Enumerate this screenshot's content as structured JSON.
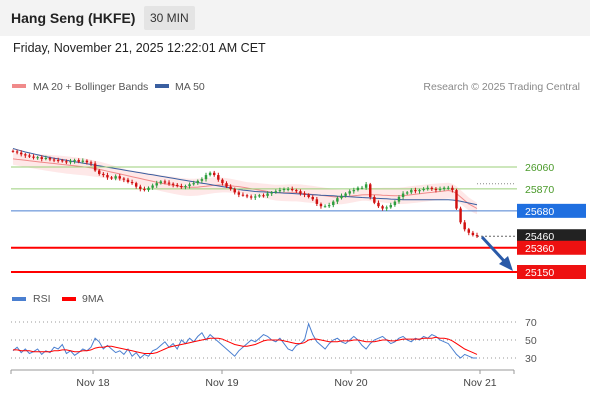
{
  "header": {
    "title": "Hang Seng (HKFE)",
    "timeframe": "30 MIN",
    "datetime": "Friday, November 21, 2025 12:22:01 AM CET"
  },
  "copyright": "Research © 2025 Trading Central",
  "colors": {
    "up": "#2e9e3e",
    "down": "#d01010",
    "ma20": "#f08a8a",
    "ma50": "#3a5fa0",
    "band": "#fde0e0",
    "support": "#ff0000",
    "resistance": "#9bcf7a",
    "pivot": "#4a7fd0",
    "last": "#333333",
    "rsi": "#4a7fd0",
    "rsi_ma": "#ff0000"
  },
  "chart_data": [
    {
      "type": "candlestick",
      "legend": [
        {
          "label": "MA 20 + Bollinger Bands",
          "color": "#f08a8a"
        },
        {
          "label": "MA 50",
          "color": "#3a5fa0"
        }
      ],
      "legend_position": "top-left",
      "x_tick_labels": [
        "Nov 18",
        "Nov 19",
        "Nov 20",
        "Nov 21"
      ],
      "y_range": [
        25100,
        26300
      ],
      "price_levels": [
        {
          "label": "26060",
          "value": 26060,
          "kind": "resistance"
        },
        {
          "label": "25870",
          "value": 25870,
          "kind": "resistance"
        },
        {
          "label": "25680",
          "value": 25680,
          "kind": "pivot"
        },
        {
          "label": "25460",
          "value": 25460,
          "kind": "last"
        },
        {
          "label": "25360",
          "value": 25360,
          "kind": "support"
        },
        {
          "label": "25150",
          "value": 25150,
          "kind": "support"
        }
      ],
      "close_path": [
        26195,
        26185,
        26170,
        26160,
        26150,
        26140,
        26145,
        26130,
        26138,
        26125,
        26120,
        26118,
        26110,
        26100,
        26110,
        26120,
        26105,
        26115,
        26100,
        26090,
        26030,
        26000,
        25990,
        25970,
        25960,
        25980,
        25960,
        25950,
        25930,
        25920,
        25890,
        25870,
        25860,
        25880,
        25900,
        25920,
        25935,
        25925,
        25915,
        25905,
        25895,
        25885,
        25895,
        25910,
        25920,
        25940,
        25955,
        25990,
        26010,
        25990,
        25950,
        25920,
        25890,
        25870,
        25840,
        25820,
        25815,
        25805,
        25795,
        25805,
        25815,
        25810,
        25830,
        25840,
        25850,
        25860,
        25870,
        25870,
        25860,
        25850,
        25830,
        25820,
        25800,
        25780,
        25740,
        25720,
        25720,
        25730,
        25760,
        25790,
        25810,
        25830,
        25850,
        25860,
        25880,
        25880,
        25910,
        25800,
        25750,
        25720,
        25700,
        25710,
        25730,
        25760,
        25800,
        25830,
        25840,
        25860,
        25850,
        25860,
        25870,
        25880,
        25870,
        25860,
        25870,
        25880,
        25880,
        25860,
        25700,
        25580,
        25520,
        25490,
        25470,
        25460
      ],
      "ma20_path": [
        26130,
        26126,
        26122,
        26118,
        26114,
        26110,
        26106,
        26102,
        26098,
        26094,
        26090,
        26086,
        26082,
        26078,
        26074,
        26070,
        26066,
        26062,
        26058,
        26052,
        26046,
        26040,
        26032,
        26024,
        26016,
        26008,
        26000,
        25992,
        25984,
        25976,
        25968,
        25960,
        25952,
        25944,
        25936,
        25928,
        25920,
        25914,
        25908,
        25902,
        25896,
        25890,
        25886,
        25884,
        25884,
        25886,
        25890,
        25894,
        25898,
        25902,
        25904,
        25904,
        25902,
        25898,
        25894,
        25890,
        25884,
        25878,
        25872,
        25866,
        25860,
        25854,
        25848,
        25842,
        25838,
        25836,
        25836,
        25836,
        25836,
        25836,
        25834,
        25830,
        25826,
        25822,
        25818,
        25814,
        25810,
        25806,
        25802,
        25800,
        25800,
        25802,
        25806,
        25810,
        25814,
        25818,
        25820,
        25820,
        25820,
        25818,
        25816,
        25814,
        25812,
        25810,
        25810,
        25812,
        25816,
        25820,
        25824,
        25828,
        25832,
        25836,
        25840,
        25844,
        25848,
        25852,
        25856,
        25850,
        25830,
        25800,
        25770,
        25740,
        25720,
        25700
      ],
      "ma50_path": [
        26220,
        26210,
        26200,
        26190,
        26182,
        26174,
        26166,
        26158,
        26150,
        26142,
        26136,
        26130,
        26124,
        26118,
        26112,
        26106,
        26100,
        26094,
        26088,
        26082,
        26076,
        26070,
        26064,
        26058,
        26052,
        26046,
        26040,
        26034,
        26028,
        26022,
        26016,
        26010,
        26004,
        25998,
        25992,
        25986,
        25980,
        25974,
        25968,
        25962,
        25956,
        25950,
        25944,
        25938,
        25932,
        25926,
        25920,
        25914,
        25908,
        25902,
        25896,
        25890,
        25884,
        25878,
        25872,
        25866,
        25860,
        25856,
        25852,
        25848,
        25846,
        25844,
        25842,
        25840,
        25838,
        25836,
        25834,
        25832,
        25830,
        25828,
        25826,
        25824,
        25822,
        25820,
        25818,
        25816,
        25814,
        25812,
        25810,
        25808,
        25806,
        25804,
        25802,
        25800,
        25798,
        25796,
        25794,
        25792,
        25790,
        25788,
        25786,
        25784,
        25782,
        25780,
        25778,
        25776,
        25776,
        25776,
        25776,
        25776,
        25776,
        25776,
        25776,
        25776,
        25776,
        25776,
        25776,
        25774,
        25770,
        25764,
        25756,
        25748,
        25740,
        25732
      ]
    },
    {
      "type": "line",
      "legend": [
        {
          "label": "RSI",
          "color": "#4a7fd0"
        },
        {
          "label": "9MA",
          "color": "#ff0000"
        }
      ],
      "legend_position": "top-left",
      "y_tick_labels": [
        "70",
        "50",
        "30"
      ],
      "y_ticks": [
        70,
        50,
        30
      ],
      "y_range": [
        15,
        85
      ],
      "series": [
        {
          "name": "RSI",
          "values": [
            38,
            42,
            36,
            40,
            35,
            37,
            40,
            34,
            38,
            36,
            42,
            40,
            45,
            35,
            38,
            33,
            36,
            40,
            38,
            42,
            52,
            48,
            40,
            44,
            40,
            36,
            38,
            34,
            40,
            32,
            36,
            30,
            34,
            32,
            38,
            40,
            44,
            48,
            42,
            46,
            40,
            50,
            46,
            52,
            48,
            54,
            58,
            50,
            56,
            52,
            48,
            44,
            40,
            36,
            32,
            38,
            42,
            46,
            50,
            48,
            52,
            56,
            54,
            50,
            48,
            52,
            46,
            40,
            38,
            44,
            46,
            50,
            68,
            56,
            48,
            44,
            40,
            46,
            50,
            52,
            48,
            46,
            50,
            54,
            50,
            44,
            40,
            46,
            50,
            52,
            54,
            50,
            46,
            48,
            52,
            54,
            50,
            48,
            52,
            50,
            54,
            52,
            56,
            54,
            50,
            48,
            46,
            40,
            34,
            30,
            34,
            32,
            30,
            30
          ]
        },
        {
          "name": "9MA",
          "values": [
            39,
            39,
            38,
            38,
            38,
            37,
            37,
            37,
            37,
            37,
            38,
            38,
            39,
            39,
            38,
            37,
            37,
            38,
            38,
            39,
            41,
            42,
            42,
            43,
            43,
            42,
            41,
            40,
            39,
            38,
            37,
            36,
            35,
            35,
            35,
            36,
            38,
            40,
            42,
            43,
            44,
            45,
            46,
            47,
            48,
            49,
            50,
            51,
            52,
            52,
            52,
            51,
            49,
            47,
            45,
            44,
            43,
            43,
            44,
            45,
            47,
            49,
            50,
            50,
            50,
            50,
            49,
            48,
            47,
            46,
            46,
            47,
            50,
            51,
            51,
            50,
            49,
            48,
            48,
            48,
            49,
            49,
            49,
            50,
            50,
            49,
            48,
            48,
            48,
            49,
            50,
            50,
            49,
            49,
            50,
            51,
            51,
            51,
            51,
            51,
            52,
            52,
            52,
            53,
            52,
            52,
            51,
            49,
            46,
            43,
            40,
            38,
            36,
            34
          ]
        }
      ]
    }
  ]
}
